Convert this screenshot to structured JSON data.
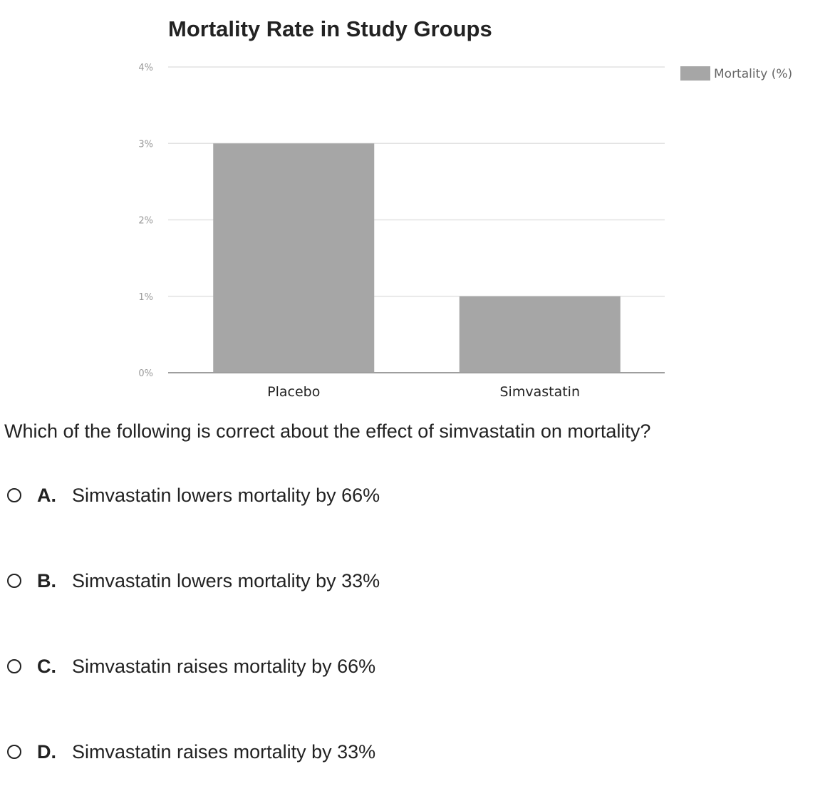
{
  "chart_data": {
    "type": "bar",
    "title": "Mortality Rate in Study Groups",
    "categories": [
      "Placebo",
      "Simvastatin"
    ],
    "series": [
      {
        "name": "Mortality (%)",
        "values": [
          3,
          1
        ],
        "color": "#a6a6a6"
      }
    ],
    "ylim": [
      0,
      4
    ],
    "yticks": [
      0,
      1,
      2,
      3,
      4
    ],
    "ytick_labels": [
      "0%",
      "1%",
      "2%",
      "3%",
      "4%"
    ],
    "xlabel": "",
    "ylabel": "",
    "grid": true,
    "legend_position": "top-right"
  },
  "colors": {
    "bar": "#a6a6a6",
    "grid": "#e2e2e2",
    "axis": "#9e9e9e"
  },
  "question": {
    "text": "Which of the following is correct about the effect of simvastatin on mortality?",
    "options": [
      {
        "letter": "A.",
        "text": "Simvastatin lowers mortality by 66%"
      },
      {
        "letter": "B.",
        "text": "Simvastatin lowers mortality by 33%"
      },
      {
        "letter": "C.",
        "text": "Simvastatin raises mortality by 66%"
      },
      {
        "letter": "D.",
        "text": "Simvastatin raises mortality by 33%"
      }
    ]
  }
}
